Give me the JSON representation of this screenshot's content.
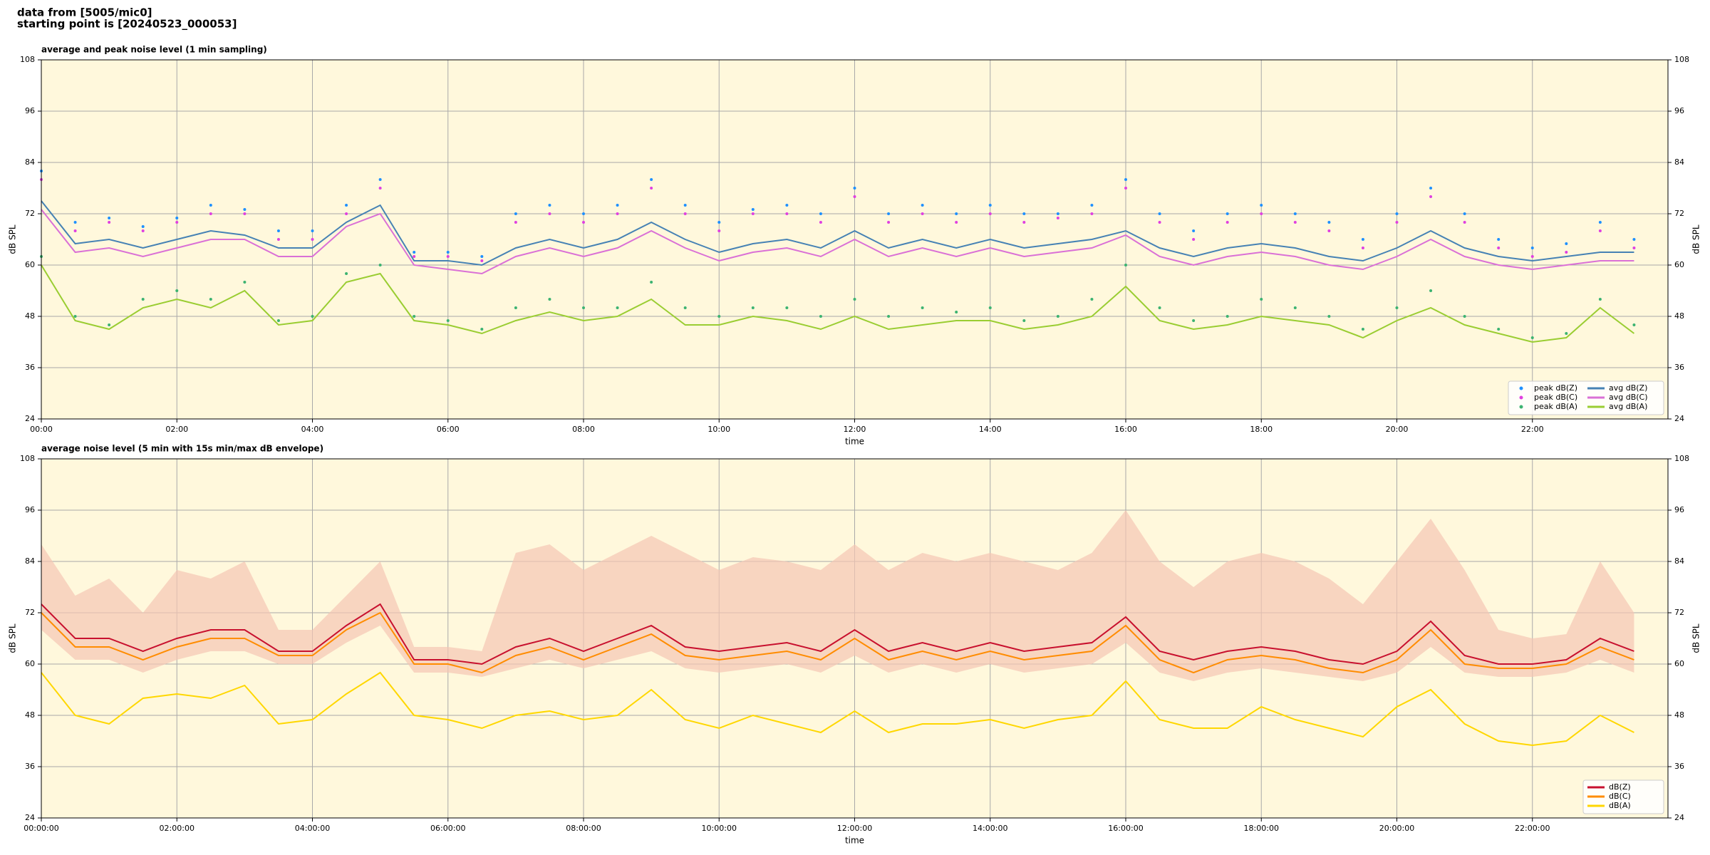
{
  "header": {
    "source": "data from [5005/mic0]",
    "start": "starting point is [20240523_000053]"
  },
  "chart_data": [
    {
      "type": "line",
      "title": "average and peak noise level (1 min sampling)",
      "x_label": "time",
      "y_label": "dB SPL",
      "xlim": [
        0,
        24
      ],
      "ylim": [
        24,
        108
      ],
      "xticks": [
        {
          "value": 0,
          "label": "00:00"
        },
        {
          "value": 2,
          "label": "02:00"
        },
        {
          "value": 4,
          "label": "04:00"
        },
        {
          "value": 6,
          "label": "06:00"
        },
        {
          "value": 8,
          "label": "08:00"
        },
        {
          "value": 10,
          "label": "10:00"
        },
        {
          "value": 12,
          "label": "12:00"
        },
        {
          "value": 14,
          "label": "14:00"
        },
        {
          "value": 16,
          "label": "16:00"
        },
        {
          "value": 18,
          "label": "18:00"
        },
        {
          "value": 20,
          "label": "20:00"
        },
        {
          "value": 22,
          "label": "22:00"
        }
      ],
      "yticks": [
        24,
        36,
        48,
        60,
        72,
        84,
        96,
        108
      ],
      "grid": true,
      "legend": "lower right",
      "legend_columns": 2,
      "background": "#fff8dc",
      "x": [
        0,
        0.5,
        1,
        1.5,
        2,
        2.5,
        3,
        3.5,
        4,
        4.5,
        5,
        5.5,
        6,
        6.5,
        7,
        7.5,
        8,
        8.5,
        9,
        9.5,
        10,
        10.5,
        11,
        11.5,
        12,
        12.5,
        13,
        13.5,
        14,
        14.5,
        15,
        15.5,
        16,
        16.5,
        17,
        17.5,
        18,
        18.5,
        19,
        19.5,
        20,
        20.5,
        21,
        21.5,
        22,
        22.5,
        23,
        23.5
      ],
      "series": [
        {
          "name": "peak dB(Z)",
          "type": "scatter",
          "color": "#1e90ff",
          "values": [
            82,
            70,
            71,
            69,
            71,
            74,
            73,
            68,
            68,
            74,
            80,
            63,
            63,
            62,
            72,
            74,
            72,
            74,
            80,
            74,
            70,
            73,
            74,
            72,
            78,
            72,
            74,
            72,
            74,
            72,
            72,
            74,
            80,
            72,
            68,
            72,
            74,
            72,
            70,
            66,
            72,
            78,
            72,
            66,
            64,
            65,
            70,
            66
          ]
        },
        {
          "name": "peak dB(C)",
          "type": "scatter",
          "color": "#e040e0",
          "values": [
            80,
            68,
            70,
            68,
            70,
            72,
            72,
            66,
            66,
            72,
            78,
            62,
            62,
            61,
            70,
            72,
            70,
            72,
            78,
            72,
            68,
            72,
            72,
            70,
            76,
            70,
            72,
            70,
            72,
            70,
            71,
            72,
            78,
            70,
            66,
            70,
            72,
            70,
            68,
            64,
            70,
            76,
            70,
            64,
            62,
            63,
            68,
            64
          ]
        },
        {
          "name": "peak dB(A)",
          "type": "scatter",
          "color": "#3cb371",
          "values": [
            62,
            48,
            46,
            52,
            54,
            52,
            56,
            47,
            48,
            58,
            60,
            48,
            47,
            45,
            50,
            52,
            50,
            50,
            56,
            50,
            48,
            50,
            50,
            48,
            52,
            48,
            50,
            49,
            50,
            47,
            48,
            52,
            60,
            50,
            47,
            48,
            52,
            50,
            48,
            45,
            50,
            54,
            48,
            45,
            43,
            44,
            52,
            46
          ]
        },
        {
          "name": "avg dB(Z)",
          "type": "line",
          "color": "#4682b4",
          "values": [
            75,
            65,
            66,
            64,
            66,
            68,
            67,
            64,
            64,
            70,
            74,
            61,
            61,
            60,
            64,
            66,
            64,
            66,
            70,
            66,
            63,
            65,
            66,
            64,
            68,
            64,
            66,
            64,
            66,
            64,
            65,
            66,
            68,
            64,
            62,
            64,
            65,
            64,
            62,
            61,
            64,
            68,
            64,
            62,
            61,
            62,
            63,
            63
          ]
        },
        {
          "name": "avg dB(C)",
          "type": "line",
          "color": "#da70d6",
          "values": [
            73,
            63,
            64,
            62,
            64,
            66,
            66,
            62,
            62,
            69,
            72,
            60,
            59,
            58,
            62,
            64,
            62,
            64,
            68,
            64,
            61,
            63,
            64,
            62,
            66,
            62,
            64,
            62,
            64,
            62,
            63,
            64,
            67,
            62,
            60,
            62,
            63,
            62,
            60,
            59,
            62,
            66,
            62,
            60,
            59,
            60,
            61,
            61
          ]
        },
        {
          "name": "avg dB(A)",
          "type": "line",
          "color": "#9acd32",
          "values": [
            60,
            47,
            45,
            50,
            52,
            50,
            54,
            46,
            47,
            56,
            58,
            47,
            46,
            44,
            47,
            49,
            47,
            48,
            52,
            46,
            46,
            48,
            47,
            45,
            48,
            45,
            46,
            47,
            47,
            45,
            46,
            48,
            55,
            47,
            45,
            46,
            48,
            47,
            46,
            43,
            47,
            50,
            46,
            44,
            42,
            43,
            50,
            44
          ]
        }
      ]
    },
    {
      "type": "line",
      "title": "average noise level (5 min with 15s min/max dB envelope)",
      "x_label": "time",
      "y_label": "dB SPL",
      "xlim": [
        0,
        24
      ],
      "ylim": [
        24,
        108
      ],
      "xticks": [
        {
          "value": 0,
          "label": "00:00:00"
        },
        {
          "value": 2,
          "label": "02:00:00"
        },
        {
          "value": 4,
          "label": "04:00:00"
        },
        {
          "value": 6,
          "label": "06:00:00"
        },
        {
          "value": 8,
          "label": "08:00:00"
        },
        {
          "value": 10,
          "label": "10:00:00"
        },
        {
          "value": 12,
          "label": "12:00:00"
        },
        {
          "value": 14,
          "label": "14:00:00"
        },
        {
          "value": 16,
          "label": "16:00:00"
        },
        {
          "value": 18,
          "label": "18:00:00"
        },
        {
          "value": 20,
          "label": "20:00:00"
        },
        {
          "value": 22,
          "label": "22:00:00"
        }
      ],
      "yticks": [
        24,
        36,
        48,
        60,
        72,
        84,
        96,
        108
      ],
      "grid": true,
      "legend": "lower right",
      "legend_columns": 1,
      "background": "#fff8dc",
      "x": [
        0,
        0.5,
        1,
        1.5,
        2,
        2.5,
        3,
        3.5,
        4,
        4.5,
        5,
        5.5,
        6,
        6.5,
        7,
        7.5,
        8,
        8.5,
        9,
        9.5,
        10,
        10.5,
        11,
        11.5,
        12,
        12.5,
        13,
        13.5,
        14,
        14.5,
        15,
        15.5,
        16,
        16.5,
        17,
        17.5,
        18,
        18.5,
        19,
        19.5,
        20,
        20.5,
        21,
        21.5,
        22,
        22.5,
        23,
        23.5
      ],
      "band": {
        "color": "#f5c6b4",
        "lower": [
          68,
          61,
          61,
          58,
          61,
          63,
          63,
          60,
          60,
          65,
          69,
          58,
          58,
          57,
          59,
          61,
          59,
          61,
          63,
          59,
          58,
          59,
          60,
          58,
          62,
          58,
          60,
          58,
          60,
          58,
          59,
          60,
          65,
          58,
          56,
          58,
          59,
          58,
          57,
          56,
          58,
          64,
          58,
          57,
          57,
          58,
          61,
          58
        ],
        "upper": [
          88,
          76,
          80,
          72,
          82,
          80,
          84,
          68,
          68,
          76,
          84,
          64,
          64,
          63,
          86,
          88,
          82,
          86,
          90,
          86,
          82,
          85,
          84,
          82,
          88,
          82,
          86,
          84,
          86,
          84,
          82,
          86,
          96,
          84,
          78,
          84,
          86,
          84,
          80,
          74,
          84,
          94,
          82,
          68,
          66,
          67,
          84,
          72
        ]
      },
      "series": [
        {
          "name": "dB(Z)",
          "type": "line",
          "color": "#c8102e",
          "values": [
            74,
            66,
            66,
            63,
            66,
            68,
            68,
            63,
            63,
            69,
            74,
            61,
            61,
            60,
            64,
            66,
            63,
            66,
            69,
            64,
            63,
            64,
            65,
            63,
            68,
            63,
            65,
            63,
            65,
            63,
            64,
            65,
            71,
            63,
            61,
            63,
            64,
            63,
            61,
            60,
            63,
            70,
            62,
            60,
            60,
            61,
            66,
            63
          ]
        },
        {
          "name": "dB(C)",
          "type": "line",
          "color": "#ff8c00",
          "values": [
            72,
            64,
            64,
            61,
            64,
            66,
            66,
            62,
            62,
            68,
            72,
            60,
            60,
            58,
            62,
            64,
            61,
            64,
            67,
            62,
            61,
            62,
            63,
            61,
            66,
            61,
            63,
            61,
            63,
            61,
            62,
            63,
            69,
            61,
            58,
            61,
            62,
            61,
            59,
            58,
            61,
            68,
            60,
            59,
            59,
            60,
            64,
            61
          ]
        },
        {
          "name": "dB(A)",
          "type": "line",
          "color": "#ffd700",
          "values": [
            58,
            48,
            46,
            52,
            53,
            52,
            55,
            46,
            47,
            53,
            58,
            48,
            47,
            45,
            48,
            49,
            47,
            48,
            54,
            47,
            45,
            48,
            46,
            44,
            49,
            44,
            46,
            46,
            47,
            45,
            47,
            48,
            56,
            47,
            45,
            45,
            50,
            47,
            45,
            43,
            50,
            54,
            46,
            42,
            41,
            42,
            48,
            44
          ]
        }
      ]
    }
  ]
}
